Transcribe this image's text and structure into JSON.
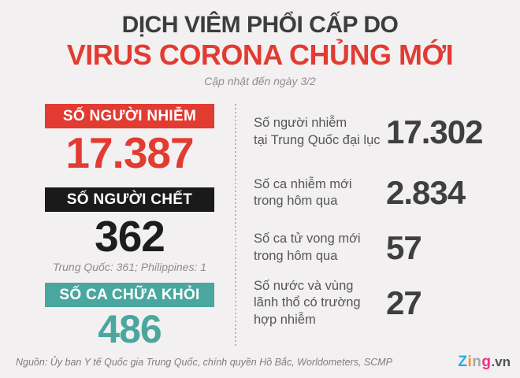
{
  "header": {
    "title_line1": "DỊCH VIÊM PHỔI CẤP DO",
    "title_line2": "VIRUS CORONA CHỦNG MỚI",
    "subtitle": "Cập nhật đến ngày 3/2"
  },
  "colors": {
    "background": "#f2f0f0",
    "accent_red": "#e23b32",
    "accent_black": "#1a1a1a",
    "accent_teal": "#4aa79f",
    "title_gray": "#3d3d3f",
    "label_gray": "#565656",
    "muted_gray": "#8e8c8c"
  },
  "left_stats": [
    {
      "label": "SỐ NGƯỜI NHIỄM",
      "value": "17.387",
      "note": ""
    },
    {
      "label": "SỐ NGƯỜI CHẾT",
      "value": "362",
      "note": "Trung Quốc: 361; Philippines: 1"
    },
    {
      "label": "SỐ CA CHỮA KHỎI",
      "value": "486",
      "note": ""
    }
  ],
  "right_stats": [
    {
      "label": "Số người nhiễm\ntại Trung Quốc đại lục",
      "value": "17.302"
    },
    {
      "label": "Số ca nhiễm mới\ntrong hôm qua",
      "value": "2.834"
    },
    {
      "label": "Số ca tử vong mới\ntrong hôm qua",
      "value": "57"
    },
    {
      "label": "Số nước và vùng\nlãnh thổ có trường\nhợp nhiễm",
      "value": "27"
    }
  ],
  "footer": {
    "source": "Nguồn: Ủy ban Y tế Quốc gia Trung Quốc, chính quyền Hồ Bắc, Worldometers, SCMP",
    "logo": {
      "z": "Z",
      "i": "i",
      "n": "n",
      "g": "g",
      "suffix": ".vn"
    }
  },
  "chart_data": {
    "type": "table",
    "title": "DỊCH VIÊM PHỔI CẤP DO VIRUS CORONA CHỦNG MỚI",
    "subtitle": "Cập nhật đến ngày 3/2",
    "rows": [
      {
        "label": "Số người nhiễm",
        "value": 17387
      },
      {
        "label": "Số người chết",
        "value": 362,
        "breakdown": {
          "Trung Quốc": 361,
          "Philippines": 1
        }
      },
      {
        "label": "Số ca chữa khỏi",
        "value": 486
      },
      {
        "label": "Số người nhiễm tại Trung Quốc đại lục",
        "value": 17302
      },
      {
        "label": "Số ca nhiễm mới trong hôm qua",
        "value": 2834
      },
      {
        "label": "Số ca tử vong mới trong hôm qua",
        "value": 57
      },
      {
        "label": "Số nước và vùng lãnh thổ có trường hợp nhiễm",
        "value": 27
      }
    ],
    "source": "Ủy ban Y tế Quốc gia Trung Quốc, chính quyền Hồ Bắc, Worldometers, SCMP"
  }
}
